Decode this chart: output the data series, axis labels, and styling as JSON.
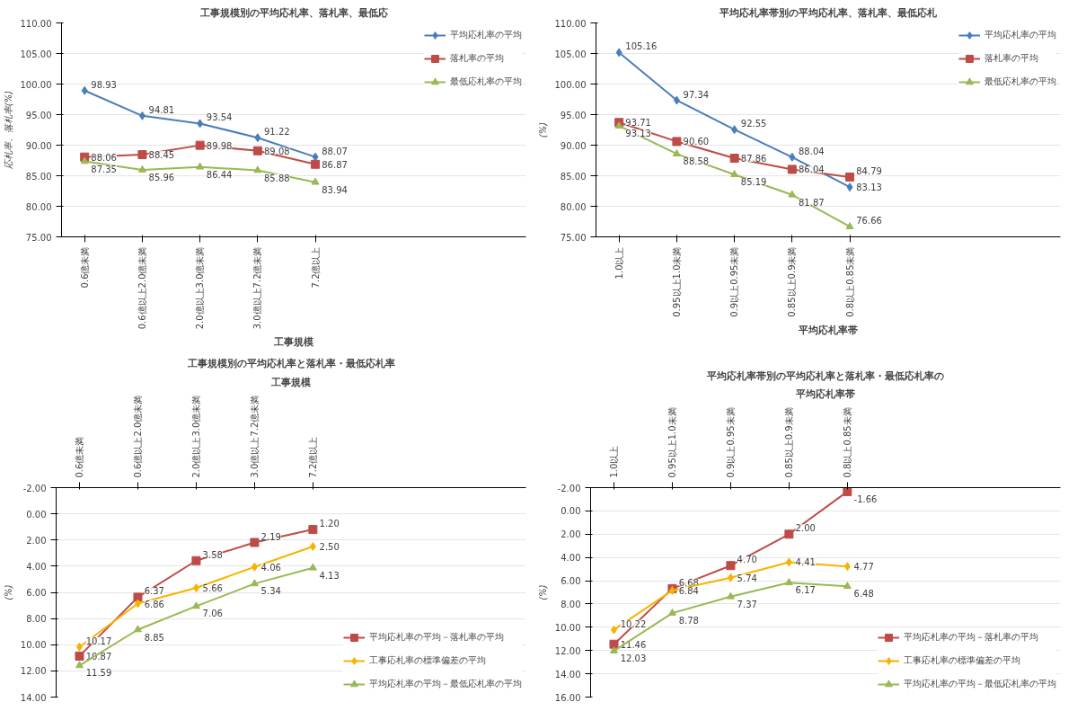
{
  "chart_data": [
    {
      "type": "line",
      "title": "工事規模別の平均応札率、落札率、最低応",
      "xlabel": "工事規模",
      "ylabel": "応札率、落札率(%)",
      "categories": [
        "0.6億未満",
        "0.6億以上2.0億未満",
        "2.0億以上3.0億未満",
        "3.0億以上7.2億未満",
        "7.2億以上"
      ],
      "ylim": [
        75,
        110
      ],
      "yticks": [
        {
          "value": 75,
          "label": "75.00"
        },
        {
          "value": 80,
          "label": "80.00"
        },
        {
          "value": 85,
          "label": "85.00"
        },
        {
          "value": 90,
          "label": "90.00"
        },
        {
          "value": 95,
          "label": "95.00"
        },
        {
          "value": 100,
          "label": "100.00"
        },
        {
          "value": 105,
          "label": "105.00"
        },
        {
          "value": 110,
          "label": "110.00"
        }
      ],
      "grid": "y",
      "legend": "top right",
      "data_labels": true,
      "series": [
        {
          "name": "平均応札率の平均",
          "color": "#4a7ebb",
          "marker": "diamond",
          "values": [
            98.93,
            94.81,
            93.54,
            91.22,
            88.07
          ],
          "value_labels": [
            "98.93",
            "94.81",
            "93.54",
            "91.22",
            "88.07"
          ]
        },
        {
          "name": "落札率の平均",
          "color": "#be4b48",
          "marker": "square",
          "values": [
            88.06,
            88.45,
            89.98,
            89.08,
            86.87
          ],
          "value_labels": [
            "88.06",
            "88.45",
            "89.98",
            "89.08",
            "86.87"
          ]
        },
        {
          "name": "最低応札率の平均",
          "color": "#98b954",
          "marker": "triangle",
          "values": [
            87.35,
            85.96,
            86.44,
            85.88,
            83.94
          ],
          "value_labels": [
            "87.35",
            "85.96",
            "86.44",
            "85.88",
            "83.94"
          ]
        }
      ]
    },
    {
      "type": "line",
      "title": "平均応札率帯別の平均応札率、落札率、最低応札",
      "xlabel": "平均応札率帯",
      "ylabel": "(%)",
      "categories": [
        "1.0以上",
        "0.95以上1.0未満",
        "0.9以上0.95未満",
        "0.85以上0.9未満",
        "0.8以上0.85未満"
      ],
      "ylim": [
        75,
        110
      ],
      "yticks": [
        {
          "value": 75,
          "label": "75.00"
        },
        {
          "value": 80,
          "label": "80.00"
        },
        {
          "value": 85,
          "label": "85.00"
        },
        {
          "value": 90,
          "label": "90.00"
        },
        {
          "value": 95,
          "label": "95.00"
        },
        {
          "value": 100,
          "label": "100.00"
        },
        {
          "value": 105,
          "label": "105.00"
        },
        {
          "value": 110,
          "label": "110.00"
        }
      ],
      "grid": "y",
      "legend": "top right",
      "data_labels": true,
      "series": [
        {
          "name": "平均応札率の平均",
          "color": "#4a7ebb",
          "marker": "diamond",
          "values": [
            105.16,
            97.34,
            92.55,
            88.04,
            83.13
          ],
          "value_labels": [
            "105.16",
            "97.34",
            "92.55",
            "88.04",
            "83.13"
          ]
        },
        {
          "name": "落札率の平均",
          "color": "#be4b48",
          "marker": "square",
          "values": [
            93.71,
            90.6,
            87.86,
            86.04,
            84.79
          ],
          "value_labels": [
            "93.71",
            "90.60",
            "87.86",
            "86.04",
            "84.79"
          ]
        },
        {
          "name": "最低応札率の平均",
          "color": "#98b954",
          "marker": "triangle",
          "values": [
            93.13,
            88.58,
            85.19,
            81.87,
            76.66
          ],
          "value_labels": [
            "93.13",
            "88.58",
            "85.19",
            "81.87",
            "76.66"
          ]
        }
      ]
    },
    {
      "type": "line",
      "title": "工事規模別の平均応札率と落札率・最低応札率",
      "xlabel": "工事規模",
      "ylabel": "(%)",
      "categories": [
        "0.6億未満",
        "0.6億以上2.0億未満",
        "2.0億以上3.0億未満",
        "3.0億以上7.2億未満",
        "7.2億以上"
      ],
      "ylim": [
        14,
        -2
      ],
      "yticks": [
        {
          "value": -2,
          "label": "-2.00"
        },
        {
          "value": 0,
          "label": "0.00"
        },
        {
          "value": 2,
          "label": "2.00"
        },
        {
          "value": 4,
          "label": "4.00"
        },
        {
          "value": 6,
          "label": "6.00"
        },
        {
          "value": 8,
          "label": "8.00"
        },
        {
          "value": 10,
          "label": "10.00"
        },
        {
          "value": 12,
          "label": "12.00"
        },
        {
          "value": 14,
          "label": "14.00"
        }
      ],
      "grid": "y",
      "legend": "bottom right",
      "data_labels": true,
      "series": [
        {
          "name": "平均応札率の平均－落札率の平均",
          "color": "#be4b48",
          "marker": "square",
          "values": [
            10.87,
            6.37,
            3.58,
            2.19,
            1.2
          ],
          "value_labels": [
            "10.87",
            "6.37",
            "3.58",
            "2.19",
            "1.20"
          ]
        },
        {
          "name": "工事応札率の標準偏差の平均",
          "color": "#f5b400",
          "marker": "diamond",
          "values": [
            10.17,
            6.86,
            5.66,
            4.06,
            2.5
          ],
          "value_labels": [
            "10.17",
            "6.86",
            "5.66",
            "4.06",
            "2.50"
          ]
        },
        {
          "name": "平均応札率の平均－最低応札率の平均",
          "color": "#98b954",
          "marker": "triangle",
          "values": [
            11.59,
            8.85,
            7.06,
            5.34,
            4.13
          ],
          "value_labels": [
            "11.59",
            "8.85",
            "7.06",
            "5.34",
            "4.13"
          ]
        }
      ]
    },
    {
      "type": "line",
      "title": "平均応札率帯別の平均応札率と落札率・最低応札率の",
      "xlabel": "平均応札率帯",
      "ylabel": "(%)",
      "categories": [
        "1.0以上",
        "0.95以上1.0未満",
        "0.9以上0.95未満",
        "0.85以上0.9未満",
        "0.8以上0.85未満"
      ],
      "ylim": [
        16,
        -2
      ],
      "yticks": [
        {
          "value": -2,
          "label": "-2.00"
        },
        {
          "value": 0,
          "label": "0.00"
        },
        {
          "value": 2,
          "label": "2.00"
        },
        {
          "value": 4,
          "label": "4.00"
        },
        {
          "value": 6,
          "label": "6.00"
        },
        {
          "value": 8,
          "label": "8.00"
        },
        {
          "value": 10,
          "label": "10.00"
        },
        {
          "value": 12,
          "label": "12.00"
        },
        {
          "value": 14,
          "label": "14.00"
        },
        {
          "value": 16,
          "label": "16.00"
        }
      ],
      "grid": "y",
      "legend": "bottom right",
      "data_labels": true,
      "series": [
        {
          "name": "平均応札率の平均－落札率の平均",
          "color": "#be4b48",
          "marker": "square",
          "values": [
            11.46,
            6.68,
            4.7,
            2.0,
            -1.66
          ],
          "value_labels": [
            "11.46",
            "6.68",
            "4.70",
            "2.00",
            "-1.66"
          ]
        },
        {
          "name": "工事応札率の標準偏差の平均",
          "color": "#f5b400",
          "marker": "diamond",
          "values": [
            10.22,
            6.84,
            5.74,
            4.41,
            4.77
          ],
          "value_labels": [
            "10.22",
            "6.84",
            "5.74",
            "4.41",
            "4.77"
          ]
        },
        {
          "name": "平均応札率の平均－最低応札率の平均",
          "color": "#98b954",
          "marker": "triangle",
          "values": [
            12.03,
            8.78,
            7.37,
            6.17,
            6.48
          ],
          "value_labels": [
            "12.03",
            "8.78",
            "7.37",
            "6.17",
            "6.48"
          ]
        }
      ]
    }
  ]
}
